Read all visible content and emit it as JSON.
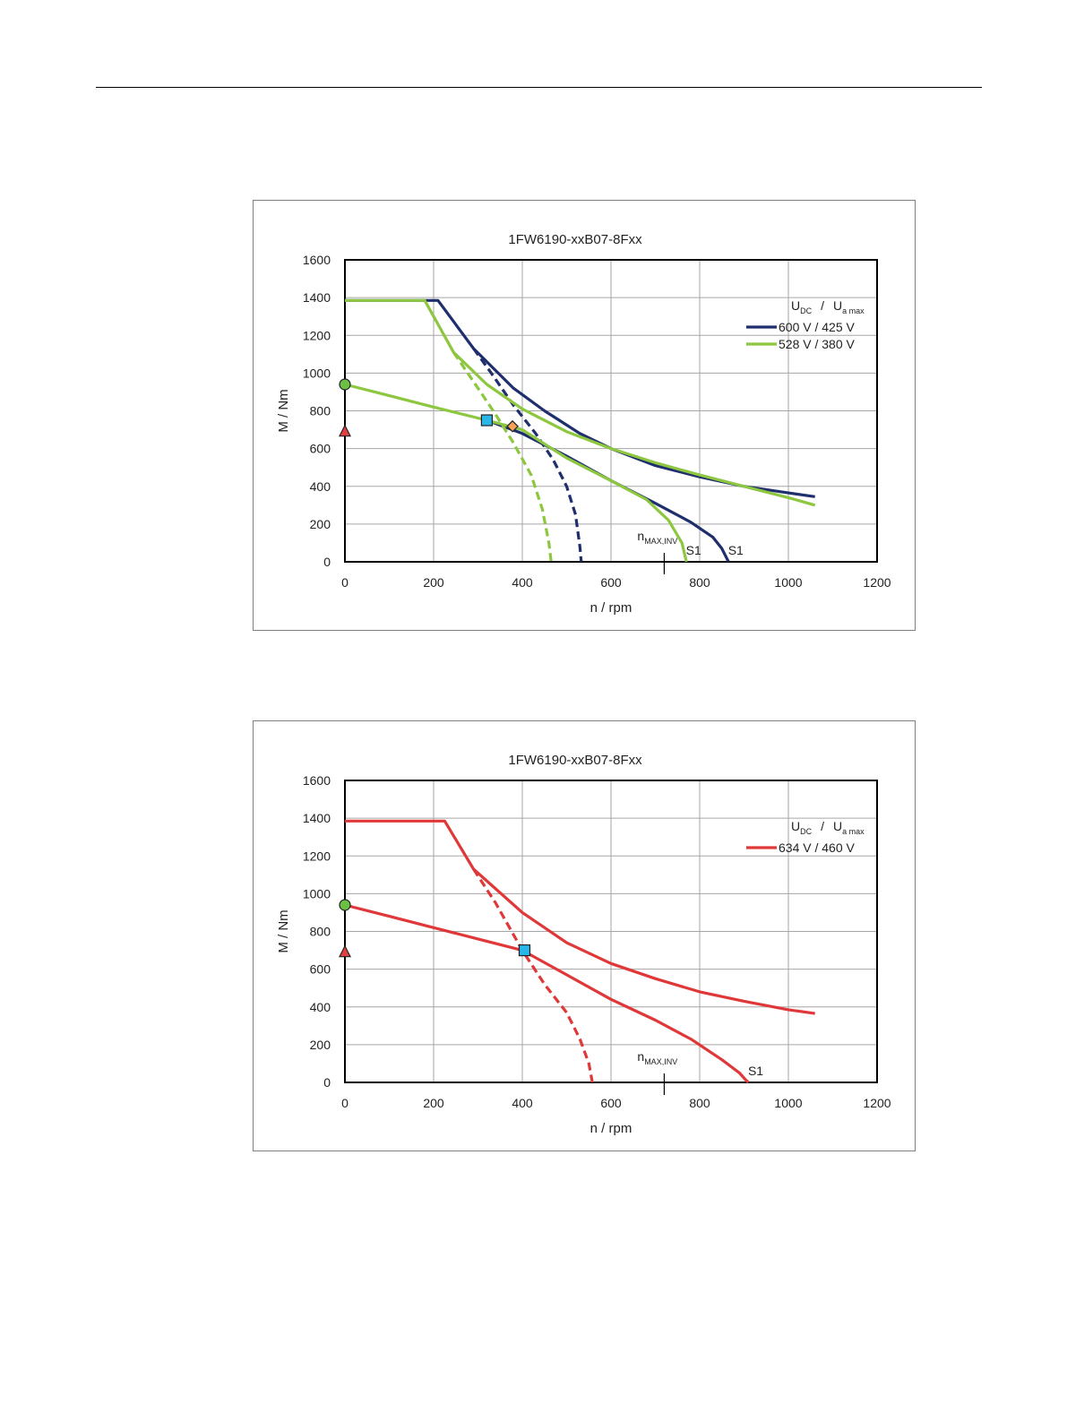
{
  "chart_data": [
    {
      "type": "line",
      "title": "1FW6190-xxB07-8Fxx",
      "xlabel": "n / rpm",
      "ylabel": "M / Nm",
      "xlim": [
        0,
        1200
      ],
      "ylim": [
        0,
        1600
      ],
      "xticks": [
        "0",
        "200",
        "400",
        "600",
        "800",
        "1000",
        "1200"
      ],
      "yticks": [
        "0",
        "200",
        "400",
        "600",
        "800",
        "1000",
        "1200",
        "1400",
        "1600"
      ],
      "grid": true,
      "legend_position": "top-right",
      "legend_title": {
        "main1": "U",
        "sub1": "DC",
        "sep": "/",
        "main2": "U",
        "sub2": "a max"
      },
      "series": [
        {
          "name": "600 V / 425 V",
          "color": "#1f2f6e",
          "curves": [
            {
              "style": "solid",
              "points": [
                [
                  0,
                  1385
                ],
                [
                  210,
                  1385
                ],
                [
                  290,
                  1130
                ],
                [
                  380,
                  920
                ],
                [
                  450,
                  800
                ],
                [
                  530,
                  680
                ],
                [
                  600,
                  600
                ],
                [
                  700,
                  510
                ],
                [
                  800,
                  450
                ],
                [
                  900,
                  400
                ],
                [
                  1000,
                  365
                ],
                [
                  1060,
                  345
                ]
              ]
            },
            {
              "style": "solid",
              "points": [
                [
                  320,
                  750
                ],
                [
                  400,
                  680
                ],
                [
                  500,
                  560
                ],
                [
                  600,
                  430
                ],
                [
                  700,
                  310
                ],
                [
                  780,
                  210
                ],
                [
                  830,
                  130
                ],
                [
                  850,
                  70
                ],
                [
                  865,
                  0
                ]
              ]
            },
            {
              "style": "dashed",
              "points": [
                [
                  290,
                  1130
                ],
                [
                  330,
                  1000
                ],
                [
                  380,
                  830
                ],
                [
                  430,
                  680
                ],
                [
                  470,
                  540
                ],
                [
                  500,
                  400
                ],
                [
                  520,
                  250
                ],
                [
                  530,
                  80
                ],
                [
                  533,
                  0
                ]
              ]
            }
          ]
        },
        {
          "name": "528 V / 380 V",
          "color": "#8dc63f",
          "curves": [
            {
              "style": "solid",
              "points": [
                [
                  0,
                  1385
                ],
                [
                  180,
                  1385
                ],
                [
                  245,
                  1110
                ],
                [
                  320,
                  940
                ],
                [
                  400,
                  810
                ],
                [
                  500,
                  690
                ],
                [
                  600,
                  600
                ],
                [
                  700,
                  525
                ],
                [
                  800,
                  460
                ],
                [
                  900,
                  400
                ],
                [
                  1000,
                  340
                ],
                [
                  1060,
                  300
                ]
              ]
            },
            {
              "style": "solid",
              "points": [
                [
                  0,
                  940
                ],
                [
                  100,
                  880
                ],
                [
                  200,
                  820
                ],
                [
                  320,
                  750
                ],
                [
                  400,
                  700
                ],
                [
                  500,
                  550
                ],
                [
                  600,
                  430
                ],
                [
                  680,
                  330
                ],
                [
                  730,
                  220
                ],
                [
                  760,
                  100
                ],
                [
                  770,
                  0
                ]
              ]
            },
            {
              "style": "dashed",
              "points": [
                [
                  245,
                  1110
                ],
                [
                  300,
                  920
                ],
                [
                  340,
                  780
                ],
                [
                  380,
                  630
                ],
                [
                  420,
                  460
                ],
                [
                  445,
                  280
                ],
                [
                  460,
                  100
                ],
                [
                  465,
                  0
                ]
              ]
            }
          ]
        }
      ],
      "markers": [
        {
          "shape": "circle",
          "x": 0,
          "y": 940,
          "color": "#6cbf45"
        },
        {
          "shape": "triangle",
          "x": 0,
          "y": 690,
          "color": "#e04040"
        },
        {
          "shape": "square",
          "x": 320,
          "y": 750,
          "color": "#29b6e8"
        },
        {
          "shape": "diamond",
          "x": 378,
          "y": 718,
          "color": "#f4a259"
        }
      ],
      "annotations": [
        {
          "label": "n",
          "sub": "MAX,INV",
          "x": 720
        },
        {
          "label": "S1",
          "x": 765
        },
        {
          "label": "S1",
          "x": 860
        }
      ]
    },
    {
      "type": "line",
      "title": "1FW6190-xxB07-8Fxx",
      "xlabel": "n / rpm",
      "ylabel": "M / Nm",
      "xlim": [
        0,
        1200
      ],
      "ylim": [
        0,
        1600
      ],
      "xticks": [
        "0",
        "200",
        "400",
        "600",
        "800",
        "1000",
        "1200"
      ],
      "yticks": [
        "0",
        "200",
        "400",
        "600",
        "800",
        "1000",
        "1200",
        "1400",
        "1600"
      ],
      "grid": true,
      "legend_position": "top-right",
      "legend_title": {
        "main1": "U",
        "sub1": "DC",
        "sep": "/",
        "main2": "U",
        "sub2": "a max"
      },
      "series": [
        {
          "name": "634 V / 460 V",
          "color": "#e03838",
          "curves": [
            {
              "style": "solid",
              "points": [
                [
                  0,
                  1385
                ],
                [
                  225,
                  1385
                ],
                [
                  290,
                  1130
                ],
                [
                  400,
                  900
                ],
                [
                  500,
                  740
                ],
                [
                  600,
                  630
                ],
                [
                  700,
                  550
                ],
                [
                  800,
                  480
                ],
                [
                  900,
                  430
                ],
                [
                  1000,
                  385
                ],
                [
                  1060,
                  365
                ]
              ]
            },
            {
              "style": "solid",
              "points": [
                [
                  0,
                  940
                ],
                [
                  100,
                  880
                ],
                [
                  200,
                  820
                ],
                [
                  300,
                  760
                ],
                [
                  400,
                  700
                ],
                [
                  500,
                  570
                ],
                [
                  600,
                  440
                ],
                [
                  700,
                  330
                ],
                [
                  780,
                  230
                ],
                [
                  850,
                  120
                ],
                [
                  890,
                  50
                ],
                [
                  905,
                  10
                ],
                [
                  910,
                  0
                ]
              ]
            },
            {
              "style": "dashed",
              "points": [
                [
                  290,
                  1130
                ],
                [
                  340,
                  950
                ],
                [
                  400,
                  700
                ],
                [
                  450,
                  520
                ],
                [
                  500,
                  370
                ],
                [
                  530,
                  230
                ],
                [
                  550,
                  100
                ],
                [
                  558,
                  0
                ]
              ]
            }
          ]
        }
      ],
      "markers": [
        {
          "shape": "circle",
          "x": 0,
          "y": 940,
          "color": "#6cbf45"
        },
        {
          "shape": "triangle",
          "x": 0,
          "y": 690,
          "color": "#e04040"
        },
        {
          "shape": "square",
          "x": 405,
          "y": 700,
          "color": "#29b6e8"
        }
      ],
      "annotations": [
        {
          "label": "n",
          "sub": "MAX,INV",
          "x": 720
        },
        {
          "label": "S1",
          "x": 905
        }
      ]
    }
  ]
}
